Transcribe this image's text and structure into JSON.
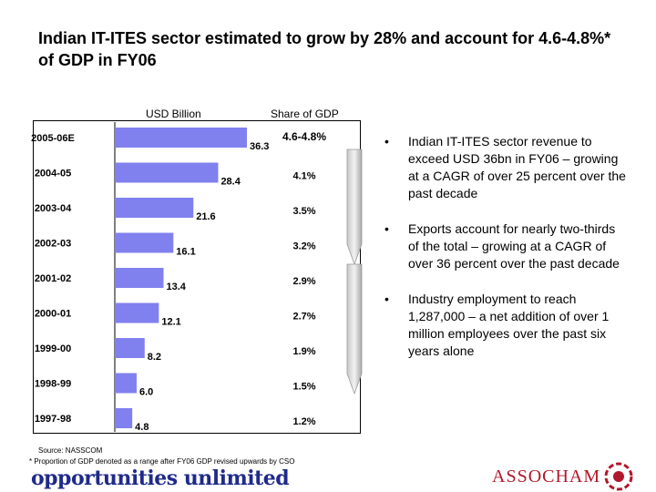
{
  "title": "Indian IT-ITES sector estimated to grow by 28% and account for 4.6-4.8%* of GDP in FY06",
  "chart_data": {
    "type": "bar",
    "orientation": "horizontal",
    "headers": {
      "values": "USD Billion",
      "share": "Share of GDP"
    },
    "categories": [
      "2005-06E",
      "2004-05",
      "2003-04",
      "2002-03",
      "2001-02",
      "2000-01",
      "1999-00",
      "1998-99",
      "1997-98"
    ],
    "values": [
      36.3,
      28.4,
      21.6,
      16.1,
      13.4,
      12.1,
      8.2,
      6.0,
      4.8
    ],
    "value_labels": [
      "36.3",
      "28.4",
      "21.6",
      "16.1",
      "13.4",
      "12.1",
      "8.2",
      "6.0",
      "4.8"
    ],
    "share_of_gdp": [
      "4.6-4.8%",
      "4.1%",
      "3.5%",
      "3.2%",
      "2.9%",
      "2.7%",
      "1.9%",
      "1.5%",
      "1.2%"
    ],
    "xlim": [
      0,
      36.3
    ],
    "bar_color": "#8080ee",
    "grid": false
  },
  "bullets": [
    "Indian IT-ITES sector revenue to exceed USD 36bn in FY06 – growing at a CAGR of over 25 percent over the past decade",
    "Exports account for nearly two-thirds of the total – growing at a CAGR of over 36 percent over the past decade",
    "Industry employment to reach 1,287,000 – a net addition of over 1 million employees over the past six years alone"
  ],
  "bullet_glyph": "•",
  "source": "Source: NASSCOM",
  "footnote": "* Proportion of GDP denoted as a range after FY06 GDP revised upwards by CSO",
  "footer": {
    "slogan": "opportunities unlimited",
    "brand": "ASSOCHAM",
    "brand_color": "#b2182b",
    "slogan_color": "#1f2a8a"
  }
}
